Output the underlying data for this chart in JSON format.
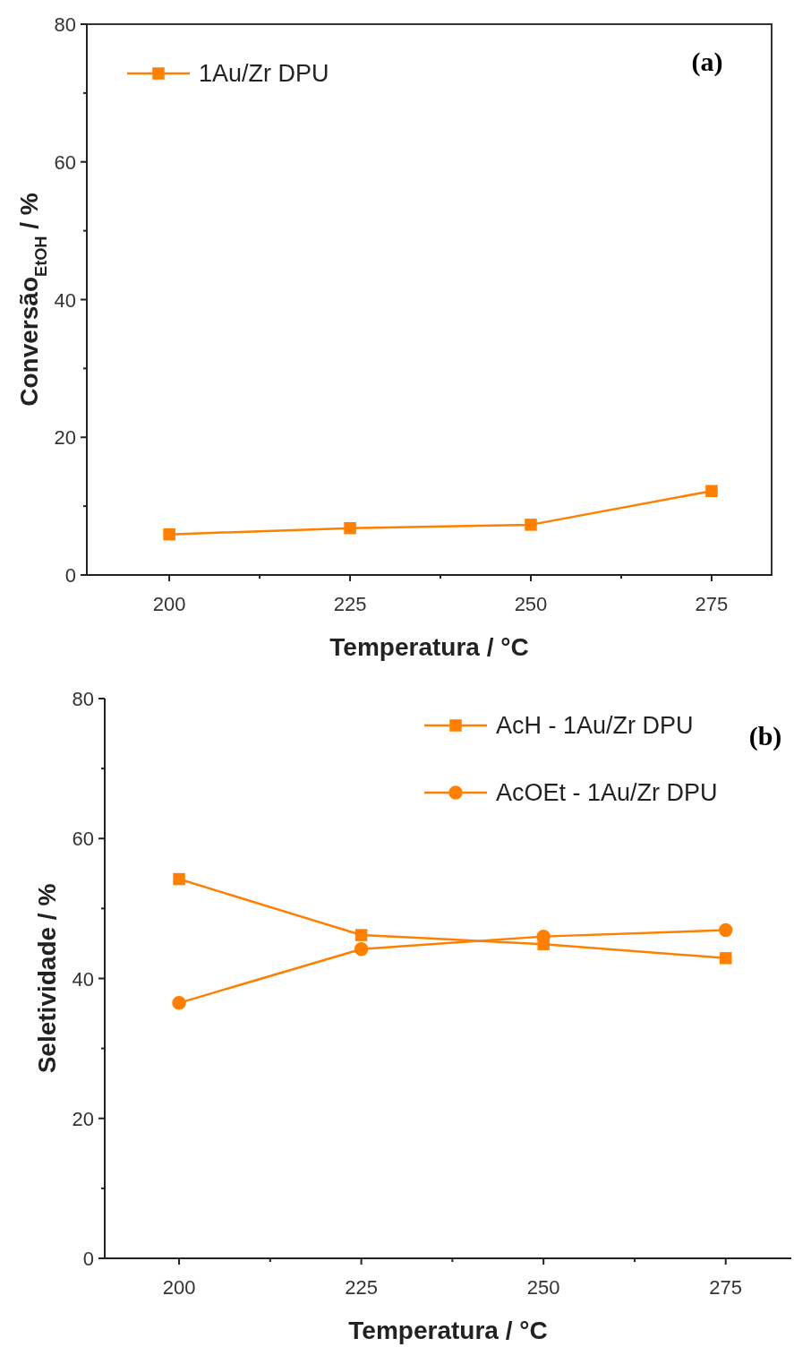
{
  "chart_data": [
    {
      "type": "line",
      "title": "(a)",
      "xlabel": "Temperatura / °C",
      "ylabel": "Conversão$_{EtOH}$ / %",
      "x": [
        200,
        225,
        250,
        275
      ],
      "series": [
        {
          "name": "1Au/Zr DPU",
          "color": "#ff8000",
          "values": [
            5.9,
            6.8,
            7.3,
            12.2
          ],
          "marker": "square"
        }
      ],
      "xlim": [
        188.6,
        283.3
      ],
      "xticks": [
        200,
        {
          "value": 212.5,
          "label": null
        },
        225,
        {
          "value": 237.5,
          "label": null
        },
        250,
        {
          "value": 262.5,
          "label": null
        },
        275
      ],
      "ylim": [
        0,
        80
      ],
      "yticks": [
        0,
        {
          "value": 10,
          "label": null
        },
        20,
        {
          "value": 30,
          "label": null
        },
        40,
        {
          "value": 50,
          "label": null
        },
        60,
        {
          "value": 70,
          "label": null
        },
        80
      ],
      "legend": "top left",
      "grid": false
    },
    {
      "type": "line",
      "title": "(b)",
      "xlabel": "Temperatura / °C",
      "ylabel": "Seletividade / %",
      "x": [
        200,
        225,
        250,
        275
      ],
      "series": [
        {
          "name": "AcH - 1Au/Zr DPU",
          "color": "#ff8000",
          "values": [
            54.2,
            46.2,
            44.9,
            42.9
          ],
          "marker": "square"
        },
        {
          "name": "AcOEt - 1Au/Zr DPU",
          "color": "#ff8000",
          "values": [
            36.5,
            44.2,
            46.0,
            46.9
          ],
          "marker": "circle"
        }
      ],
      "xlim": [
        189.8,
        284
      ],
      "xticks": [
        200,
        {
          "value": 212.5,
          "label": null
        },
        225,
        {
          "value": 237.5,
          "label": null
        },
        250,
        {
          "value": 262.5,
          "label": null
        },
        275
      ],
      "ylim": [
        0,
        80
      ],
      "yticks": [
        0,
        {
          "value": 10,
          "label": null
        },
        20,
        {
          "value": 30,
          "label": null
        },
        40,
        {
          "value": 50,
          "label": null
        },
        60,
        {
          "value": 70,
          "label": null
        },
        80
      ],
      "legend": "top right",
      "grid": false
    }
  ]
}
